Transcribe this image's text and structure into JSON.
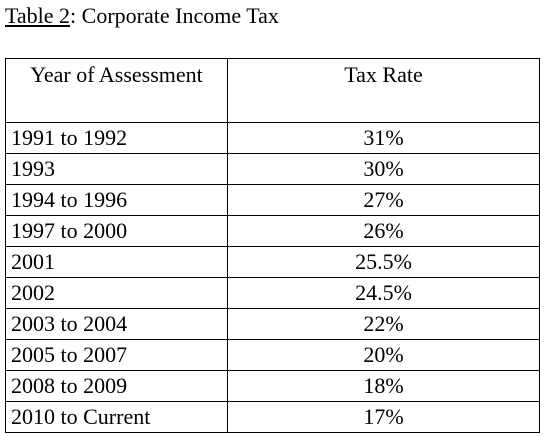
{
  "caption": {
    "label": "Table 2",
    "title": ": Corporate Income Tax"
  },
  "table": {
    "headers": [
      "Year of Assessment",
      "Tax Rate"
    ],
    "rows": [
      {
        "year": "1991 to 1992",
        "rate": "31%"
      },
      {
        "year": "1993",
        "rate": "30%"
      },
      {
        "year": "1994 to 1996",
        "rate": "27%"
      },
      {
        "year": "1997 to 2000",
        "rate": "26%"
      },
      {
        "year": "2001",
        "rate": "25.5%"
      },
      {
        "year": "2002",
        "rate": "24.5%"
      },
      {
        "year": "2003 to 2004",
        "rate": "22%"
      },
      {
        "year": "2005 to 2007",
        "rate": "20%"
      },
      {
        "year": "2008 to 2009",
        "rate": "18%"
      },
      {
        "year": "2010 to Current",
        "rate": "17%"
      }
    ]
  }
}
